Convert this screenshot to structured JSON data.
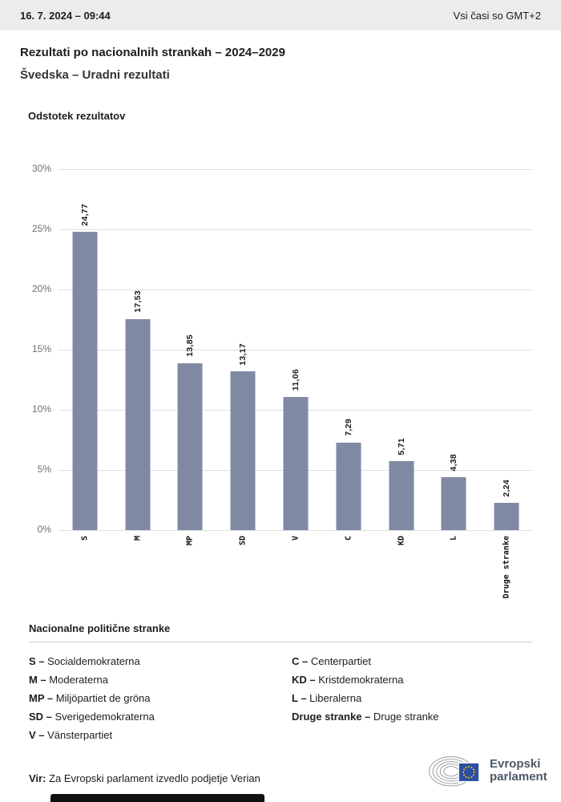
{
  "header": {
    "datetime": "16. 7. 2024 – 09:44",
    "timezone_note": "Vsi časi so GMT+2"
  },
  "page": {
    "title": "Rezultati po nacionalnih strankah – 2024–2029",
    "subtitle": "Švedska – Uradni rezultati"
  },
  "chart_data": {
    "type": "bar",
    "title": "Odstotek rezultatov",
    "categories": [
      "S",
      "M",
      "MP",
      "SD",
      "V",
      "C",
      "KD",
      "L",
      "Druge stranke"
    ],
    "values": [
      24.77,
      17.53,
      13.85,
      13.17,
      11.06,
      7.29,
      5.71,
      4.38,
      2.24
    ],
    "value_labels": [
      "24,77",
      "17,53",
      "13,85",
      "13,17",
      "11,06",
      "7,29",
      "5,71",
      "4,38",
      "2,24"
    ],
    "ylim": [
      0,
      30
    ],
    "ytick_labels": [
      "30%",
      "25%",
      "20%",
      "15%",
      "10%",
      "5%",
      "0%"
    ],
    "ytick_values": [
      30,
      25,
      20,
      15,
      10,
      5,
      0
    ],
    "grid": true,
    "legend_position": "none",
    "bar_color": "#8089A4"
  },
  "legend": {
    "title": "Nacionalne politične stranke",
    "separator": "–",
    "items_left": [
      {
        "abbr": "S",
        "name": "Socialdemokraterna"
      },
      {
        "abbr": "M",
        "name": "Moderaterna"
      },
      {
        "abbr": "MP",
        "name": "Miljöpartiet de gröna"
      },
      {
        "abbr": "SD",
        "name": "Sverigedemokraterna"
      },
      {
        "abbr": "V",
        "name": "Vänsterpartiet"
      }
    ],
    "items_right": [
      {
        "abbr": "C",
        "name": "Centerpartiet"
      },
      {
        "abbr": "KD",
        "name": "Kristdemokraterna"
      },
      {
        "abbr": "L",
        "name": "Liberalerna"
      },
      {
        "abbr": "Druge stranke",
        "name": "Druge stranke"
      }
    ]
  },
  "footer": {
    "source_label": "Vir:",
    "source_text": "Za Evropski parlament izvedlo podjetje Verian",
    "logo_line1": "Evropski",
    "logo_line2": "parlament"
  },
  "colors": {
    "flag_blue": "#2D4FA2",
    "star_yellow": "#F5D019",
    "hemicycle_gray": "#9aa0a6"
  }
}
